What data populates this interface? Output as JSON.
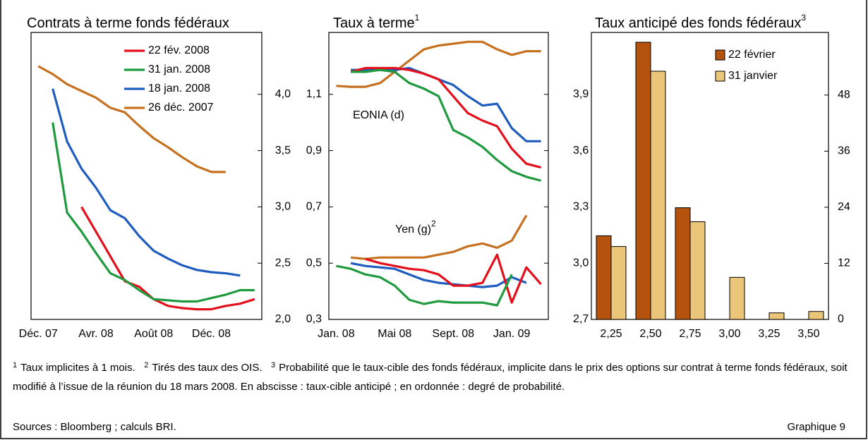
{
  "chart_data": [
    {
      "type": "line",
      "title": "Contrats à terme fonds fédéraux",
      "categories": [
        "Déc. 07",
        null,
        null,
        null,
        "Avr. 08",
        null,
        null,
        null,
        "Août 08",
        null,
        null,
        null,
        "Déc. 08",
        null,
        null,
        null
      ],
      "series": [
        {
          "name": "22 fév. 2008",
          "color": "#e3101b",
          "values": [
            null,
            null,
            null,
            3.0,
            2.78,
            2.56,
            2.34,
            2.29,
            2.18,
            2.12,
            2.1,
            2.09,
            2.09,
            2.12,
            2.14,
            2.18
          ]
        },
        {
          "name": "31 jan. 2008",
          "color": "#1f9a3e",
          "values": [
            null,
            3.75,
            2.95,
            2.78,
            2.59,
            2.41,
            2.35,
            2.26,
            2.18,
            2.17,
            2.16,
            2.16,
            2.19,
            2.22,
            2.26,
            2.26
          ]
        },
        {
          "name": "18 jan. 2008",
          "color": "#1f5cbf",
          "values": [
            null,
            4.05,
            3.58,
            3.34,
            3.17,
            2.97,
            2.9,
            2.74,
            2.61,
            2.54,
            2.48,
            2.44,
            2.42,
            2.41,
            2.39,
            null
          ]
        },
        {
          "name": "26 déc. 2007",
          "color": "#c6711f",
          "values": [
            4.25,
            4.18,
            4.09,
            4.03,
            3.97,
            3.88,
            3.84,
            3.72,
            3.61,
            3.53,
            3.44,
            3.36,
            3.31,
            3.31,
            null,
            null
          ]
        }
      ],
      "ylim": [
        2.0,
        4.55
      ],
      "yticks": [
        {
          "value": 2.0,
          "label": "2,0"
        },
        {
          "value": 2.5,
          "label": "2,5"
        },
        {
          "value": 3.0,
          "label": "3,0"
        },
        {
          "value": 3.5,
          "label": "3,5"
        },
        {
          "value": 4.0,
          "label": "4,0"
        }
      ],
      "legend": "upper right"
    },
    {
      "type": "line",
      "title": "Taux à terme",
      "title_note": "1",
      "categories": [
        "Jan. 08",
        null,
        null,
        null,
        "Mai 08",
        null,
        null,
        null,
        "Sept. 08",
        null,
        null,
        null,
        "Jan. 09",
        null,
        null
      ],
      "series": [
        {
          "color": "#c6711f",
          "axis": "y2",
          "values": [
            3.945,
            3.94,
            3.94,
            3.96,
            4.02,
            4.08,
            4.14,
            4.16,
            4.17,
            4.18,
            4.18,
            4.14,
            4.11,
            4.13,
            4.13
          ]
        },
        {
          "color": "#1f5cbf",
          "axis": "y2",
          "values": [
            null,
            4.03,
            4.03,
            4.03,
            4.03,
            4.04,
            4.01,
            3.98,
            3.95,
            3.89,
            3.84,
            3.85,
            3.72,
            3.65,
            3.65
          ]
        },
        {
          "color": "#e3101b",
          "axis": "y2",
          "values": [
            null,
            4.02,
            4.04,
            4.04,
            4.04,
            4.03,
            4.01,
            3.98,
            3.89,
            3.8,
            3.76,
            3.73,
            3.61,
            3.53,
            3.51
          ]
        },
        {
          "color": "#1f9a3e",
          "axis": "y2",
          "values": [
            null,
            4.02,
            4.02,
            4.03,
            4.02,
            3.96,
            3.93,
            3.89,
            3.71,
            3.67,
            3.62,
            3.55,
            3.49,
            3.46,
            3.44
          ]
        },
        {
          "color": "#c6711f",
          "values": [
            null,
            0.52,
            0.515,
            0.52,
            0.52,
            0.52,
            0.52,
            0.53,
            0.54,
            0.56,
            0.57,
            0.555,
            0.58,
            0.67,
            null
          ]
        },
        {
          "color": "#1f5cbf",
          "values": [
            null,
            0.5,
            0.49,
            0.485,
            0.48,
            0.46,
            0.44,
            0.43,
            0.425,
            0.42,
            0.415,
            0.42,
            0.45,
            0.43,
            null
          ]
        },
        {
          "color": "#e3101b",
          "values": [
            null,
            null,
            0.515,
            0.5,
            0.49,
            0.48,
            0.475,
            0.46,
            0.42,
            0.42,
            0.43,
            0.53,
            0.36,
            0.485,
            0.425
          ]
        },
        {
          "color": "#1f9a3e",
          "values": [
            0.49,
            0.48,
            0.46,
            0.45,
            0.42,
            0.37,
            0.355,
            0.365,
            0.36,
            0.36,
            0.36,
            0.35,
            0.46,
            null,
            null
          ]
        }
      ],
      "ylim": [
        0.3,
        1.32
      ],
      "yticks": [
        {
          "value": 0.3,
          "label": "0,3"
        },
        {
          "value": 0.5,
          "label": "0,5"
        },
        {
          "value": 0.7,
          "label": "0,7"
        },
        {
          "value": 0.9,
          "label": "0,9"
        },
        {
          "value": 1.1,
          "label": "1,1"
        }
      ],
      "y2lim": [
        2.7,
        4.23
      ],
      "y2ticks": [
        {
          "value": 2.7,
          "label": "2,7"
        },
        {
          "value": 3.0,
          "label": "3,0"
        },
        {
          "value": 3.3,
          "label": "3,3"
        },
        {
          "value": 3.6,
          "label": "3,6"
        },
        {
          "value": 3.9,
          "label": "3,9"
        }
      ],
      "annotations": [
        {
          "text": "EONIA (d)"
        },
        {
          "text": "Yen (g)",
          "note": "2"
        }
      ]
    },
    {
      "type": "bar",
      "title": "Taux anticipé des fonds fédéraux",
      "title_note": "3",
      "categories": [
        "2,25",
        "2,50",
        "2,75",
        "3,00",
        "3,25",
        "3,50"
      ],
      "series": [
        {
          "name": "22 février",
          "color": "#b5530e",
          "values": [
            17.9,
            59.3,
            23.9,
            0,
            0,
            0
          ]
        },
        {
          "name": "31 janvier",
          "color": "#ebc679",
          "values": [
            15.6,
            53.1,
            20.9,
            9.0,
            1.4,
            1.7
          ]
        }
      ],
      "ylim": [
        0,
        61.4
      ],
      "yticks": [
        0,
        12,
        24,
        36,
        48
      ],
      "legend": "upper right"
    }
  ],
  "notes": [
    {
      "marker": "1",
      "text": "Taux implicites à 1 mois."
    },
    {
      "marker": "2",
      "text": "Tirés des taux des OIS."
    },
    {
      "marker": "3",
      "text": "Probabilité que le taux-cible des fonds fédéraux, implicite dans le prix des options sur contrat à terme fonds fédéraux, soit modifié à l’issue de la réunion du 18 mars 2008. En abscisse : taux-cible anticipé ; en ordonnée : degré de probabilité."
    }
  ],
  "sources": "Sources : Bloomberg ; calculs BRI.",
  "figure_label": "Graphique 9"
}
